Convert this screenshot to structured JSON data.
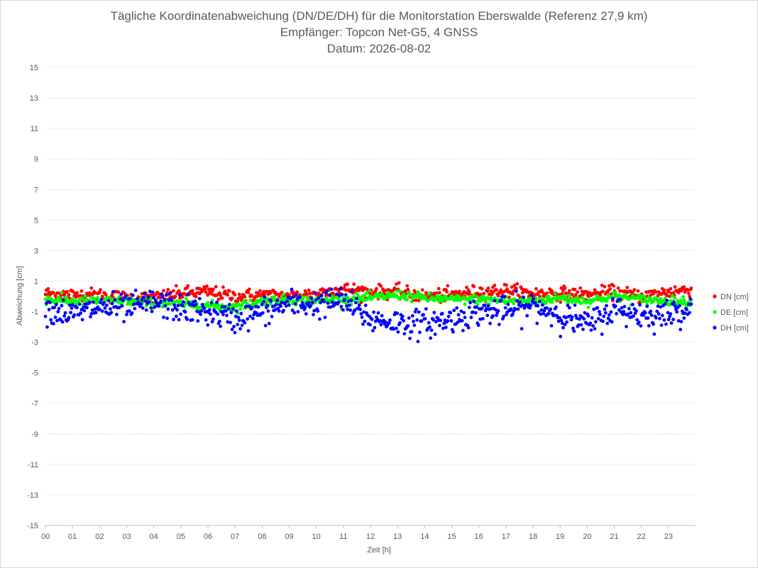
{
  "chart_data": {
    "type": "scatter",
    "title": "Tägliche Koordinatenabweichung (DN/DE/DH) für die Monitorstation Eberswalde (Referenz 27,9 km)",
    "subtitle": "Empfänger: Topcon Net-G5, 4 GNSS",
    "date_line": "Datum: 2026-08-02",
    "xlabel": "Zeit [h]",
    "ylabel": "Abweichung [cm]",
    "xlim": [
      0,
      24
    ],
    "ylim": [
      -15,
      15
    ],
    "y_ticks": [
      "15",
      "13",
      "11",
      "9",
      "7",
      "5",
      "3",
      "1",
      "-1",
      "-3",
      "-5",
      "-7",
      "-9",
      "-11",
      "-13",
      "-15"
    ],
    "x_ticks": [
      "00",
      "01",
      "02",
      "03",
      "04",
      "05",
      "06",
      "07",
      "08",
      "09",
      "10",
      "11",
      "12",
      "13",
      "14",
      "15",
      "16",
      "17",
      "18",
      "19",
      "20",
      "21",
      "22",
      "23"
    ],
    "grid": true,
    "legend_position": "right",
    "sampling_interval_h": 0.0333,
    "series": [
      {
        "name": "DN [cm]",
        "color": "#ff0000",
        "trend": [
          [
            0,
            0.2
          ],
          [
            1,
            0.1
          ],
          [
            2,
            0.1
          ],
          [
            3,
            -0.1
          ],
          [
            4,
            -0.1
          ],
          [
            5,
            0.2
          ],
          [
            6,
            0.3
          ],
          [
            7,
            0.0
          ],
          [
            8,
            0.1
          ],
          [
            9,
            0.0
          ],
          [
            10,
            0.2
          ],
          [
            11,
            0.5
          ],
          [
            12,
            0.3
          ],
          [
            13,
            0.3
          ],
          [
            14,
            0.0
          ],
          [
            15,
            0.1
          ],
          [
            16,
            0.3
          ],
          [
            17,
            0.4
          ],
          [
            18,
            0.2
          ],
          [
            19,
            0.2
          ],
          [
            20,
            0.1
          ],
          [
            21,
            0.3
          ],
          [
            22,
            0.0
          ],
          [
            23,
            0.3
          ],
          [
            24,
            0.5
          ]
        ],
        "spread": 0.22
      },
      {
        "name": "DE [cm]",
        "color": "#00ff00",
        "trend": [
          [
            0,
            -0.2
          ],
          [
            1,
            -0.3
          ],
          [
            2,
            -0.3
          ],
          [
            3,
            -0.3
          ],
          [
            4,
            -0.4
          ],
          [
            5,
            -0.5
          ],
          [
            6,
            -0.6
          ],
          [
            7,
            -0.7
          ],
          [
            8,
            -0.3
          ],
          [
            9,
            -0.2
          ],
          [
            10,
            -0.3
          ],
          [
            11,
            -0.2
          ],
          [
            12,
            -0.1
          ],
          [
            13,
            0.1
          ],
          [
            14,
            -0.1
          ],
          [
            15,
            -0.2
          ],
          [
            16,
            -0.2
          ],
          [
            17,
            -0.3
          ],
          [
            18,
            -0.3
          ],
          [
            19,
            -0.1
          ],
          [
            20,
            -0.3
          ],
          [
            21,
            0.0
          ],
          [
            22,
            -0.2
          ],
          [
            23,
            -0.3
          ],
          [
            24,
            -0.4
          ]
        ],
        "spread": 0.15
      },
      {
        "name": "DH [cm]",
        "color": "#0000ff",
        "trend": [
          [
            0,
            -0.8
          ],
          [
            1,
            -1.2
          ],
          [
            2,
            -0.7
          ],
          [
            3,
            -0.8
          ],
          [
            4,
            -0.4
          ],
          [
            5,
            -0.8
          ],
          [
            6,
            -1.0
          ],
          [
            7,
            -1.5
          ],
          [
            8,
            -1.0
          ],
          [
            9,
            -0.5
          ],
          [
            10,
            -0.5
          ],
          [
            11,
            -0.3
          ],
          [
            12,
            -1.5
          ],
          [
            13,
            -1.7
          ],
          [
            14,
            -1.8
          ],
          [
            15,
            -1.5
          ],
          [
            16,
            -1.0
          ],
          [
            17,
            -1.0
          ],
          [
            18,
            -0.6
          ],
          [
            19,
            -1.2
          ],
          [
            20,
            -1.9
          ],
          [
            21,
            -0.8
          ],
          [
            22,
            -1.2
          ],
          [
            23,
            -1.2
          ],
          [
            24,
            -0.5
          ]
        ],
        "spread": 0.45
      }
    ]
  }
}
